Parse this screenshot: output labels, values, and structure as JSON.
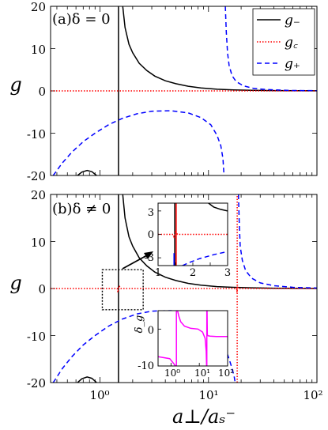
{
  "chart_data": [
    {
      "type": "line",
      "panel_label": "(a)δ = 0",
      "ylabel": "g",
      "xscale": "log",
      "xlim": [
        0.35,
        100
      ],
      "ylim": [
        -20,
        20
      ],
      "yticks": [
        "20",
        "10",
        "0",
        "-10",
        "-20"
      ],
      "legend": {
        "position": "top-right",
        "entries": [
          "g₋",
          "g꜀",
          "g₊"
        ]
      },
      "series": [
        {
          "name": "g₋",
          "color": "#000000",
          "style": "solid",
          "segments": [
            [
              [
                1.48,
                -20
              ],
              [
                1.48,
                20
              ]
            ],
            [
              [
                1.62,
                20
              ],
              [
                1.7,
                15
              ],
              [
                1.85,
                11
              ],
              [
                2.0,
                9
              ],
              [
                2.3,
                6.5
              ],
              [
                2.7,
                4.8
              ],
              [
                3.2,
                3.5
              ],
              [
                4,
                2.4
              ],
              [
                5,
                1.7
              ],
              [
                6.5,
                1.1
              ],
              [
                8.5,
                0.7
              ],
              [
                12,
                0.4
              ],
              [
                17,
                0.25
              ],
              [
                25,
                0.15
              ],
              [
                40,
                0.07
              ],
              [
                70,
                0.03
              ],
              [
                100,
                0.02
              ]
            ],
            [
              [
                0.62,
                -20
              ],
              [
                0.68,
                -19.2
              ],
              [
                0.76,
                -18.8
              ],
              [
                0.84,
                -19.1
              ],
              [
                0.9,
                -19.7
              ],
              [
                0.93,
                -20
              ]
            ]
          ]
        },
        {
          "name": "g꜀",
          "color": "#ff0000",
          "style": "dotted",
          "segments": [
            [
              [
                0.35,
                0
              ],
              [
                100,
                0
              ]
            ]
          ]
        },
        {
          "name": "g₊",
          "color": "#0000ff",
          "style": "dashed",
          "segments": [
            [
              [
                0.37,
                -20
              ],
              [
                0.45,
                -17
              ],
              [
                0.55,
                -14.5
              ],
              [
                0.7,
                -12
              ],
              [
                0.9,
                -10
              ],
              [
                1.2,
                -8
              ],
              [
                1.6,
                -6.5
              ],
              [
                2.2,
                -5.4
              ],
              [
                3,
                -4.8
              ],
              [
                4.5,
                -4.7
              ],
              [
                6.5,
                -5.2
              ],
              [
                8.5,
                -6.3
              ],
              [
                10.5,
                -8
              ],
              [
                12,
                -10.5
              ],
              [
                13,
                -13
              ],
              [
                13.6,
                -16
              ],
              [
                13.9,
                -20
              ]
            ],
            [
              [
                14.3,
                20
              ],
              [
                14.6,
                14
              ],
              [
                15,
                9
              ],
              [
                15.5,
                6
              ],
              [
                16.5,
                3.6
              ],
              [
                18,
                2.2
              ],
              [
                21,
                1.2
              ],
              [
                26,
                0.6
              ],
              [
                35,
                0.3
              ],
              [
                60,
                0.1
              ],
              [
                100,
                0.05
              ]
            ]
          ]
        }
      ]
    },
    {
      "type": "line",
      "panel_label": "(b)δ ≠ 0",
      "ylabel": "g",
      "xlabel": "a⊥/aₛ⁻",
      "xscale": "log",
      "xlim": [
        0.35,
        100
      ],
      "ylim": [
        -20,
        20
      ],
      "yticks": [
        "20",
        "10",
        "0",
        "-10",
        "-20"
      ],
      "xticks": [
        "10⁰",
        "10¹",
        "10²"
      ],
      "series": [
        {
          "name": "g₋",
          "color": "#000000",
          "style": "solid",
          "segments": [
            [
              [
                1.48,
                -20
              ],
              [
                1.48,
                20
              ]
            ],
            [
              [
                1.62,
                20
              ],
              [
                1.7,
                15
              ],
              [
                1.85,
                11
              ],
              [
                2.0,
                9
              ],
              [
                2.3,
                6.5
              ],
              [
                2.7,
                4.8
              ],
              [
                3.2,
                3.5
              ],
              [
                4,
                2.4
              ],
              [
                5,
                1.7
              ],
              [
                6.5,
                1.1
              ],
              [
                8.5,
                0.7
              ],
              [
                12,
                0.4
              ],
              [
                17,
                0.25
              ],
              [
                25,
                0.15
              ],
              [
                40,
                0.07
              ],
              [
                70,
                0.03
              ],
              [
                100,
                0.02
              ]
            ],
            [
              [
                0.62,
                -20
              ],
              [
                0.68,
                -19.2
              ],
              [
                0.76,
                -18.8
              ],
              [
                0.84,
                -19.1
              ],
              [
                0.9,
                -19.7
              ],
              [
                0.93,
                -20
              ]
            ]
          ]
        },
        {
          "name": "g꜀",
          "color": "#ff0000",
          "style": "dotted",
          "segments": [
            [
              [
                0.35,
                0
              ],
              [
                1.44,
                0
              ],
              [
                1.46,
                -0.8
              ],
              [
                1.5,
                0.6
              ],
              [
                1.56,
                0
              ],
              [
                18.2,
                0
              ],
              [
                18.3,
                -0.8
              ],
              [
                18.5,
                0.8
              ],
              [
                18.7,
                0
              ],
              [
                100,
                0
              ]
            ],
            [
              [
                18.4,
                -20
              ],
              [
                18.4,
                20
              ]
            ]
          ]
        },
        {
          "name": "g₊",
          "color": "#0000ff",
          "style": "dashed",
          "segments": [
            [
              [
                0.37,
                -20
              ],
              [
                0.45,
                -17
              ],
              [
                0.55,
                -14.5
              ],
              [
                0.7,
                -12
              ],
              [
                0.9,
                -10
              ],
              [
                1.2,
                -8
              ],
              [
                1.6,
                -6.5
              ],
              [
                2.2,
                -5.4
              ],
              [
                3,
                -4.8
              ],
              [
                4.5,
                -4.7
              ],
              [
                6.5,
                -5.2
              ],
              [
                8.5,
                -6.3
              ],
              [
                10.5,
                -8
              ],
              [
                12.5,
                -10.5
              ],
              [
                14.5,
                -13
              ],
              [
                16,
                -16
              ],
              [
                17.2,
                -18.5
              ],
              [
                17.6,
                -20
              ]
            ],
            [
              [
                18.9,
                20
              ],
              [
                19.2,
                14
              ],
              [
                19.6,
                9
              ],
              [
                20.5,
                6
              ],
              [
                22,
                3.8
              ],
              [
                25,
                2.2
              ],
              [
                30,
                1.2
              ],
              [
                40,
                0.6
              ],
              [
                60,
                0.25
              ],
              [
                100,
                0.1
              ]
            ]
          ]
        }
      ],
      "zoom_box": {
        "x": [
          1.05,
          2.5
        ],
        "y": [
          -4.5,
          4
        ]
      },
      "insets": [
        {
          "name": "zoom-inset",
          "xlim": [
            1,
            3
          ],
          "ylim": [
            -4,
            4
          ],
          "xticks": [
            "1",
            "2",
            "3"
          ],
          "yticks": [
            "3",
            "0",
            "-3"
          ],
          "series": [
            {
              "color": "#000000",
              "style": "solid",
              "segments": [
                [
                  [
                    1.48,
                    -4
                  ],
                  [
                    1.48,
                    4
                  ]
                ],
                [
                  [
                    2.45,
                    4
                  ],
                  [
                    2.6,
                    3.5
                  ],
                  [
                    2.8,
                    3.2
                  ],
                  [
                    3,
                    3
                  ]
                ]
              ]
            },
            {
              "color": "#ff0000",
              "style": "dotted",
              "segments": [
                [
                  [
                    1,
                    0
                  ],
                  [
                    1.44,
                    0
                  ],
                  [
                    1.46,
                    -0.5
                  ],
                  [
                    1.5,
                    0.3
                  ],
                  [
                    1.56,
                    0
                  ],
                  [
                    3,
                    0
                  ]
                ]
              ]
            },
            {
              "color": "#ff0000",
              "style": "solid",
              "segments": [
                [
                  [
                    1.52,
                    -4
                  ],
                  [
                    1.52,
                    4
                  ]
                ]
              ]
            },
            {
              "color": "#0000ff",
              "style": "solid",
              "segments": [
                [
                  [
                    1.46,
                    -4
                  ],
                  [
                    1.46,
                    -2.4
                  ]
                ]
              ]
            },
            {
              "color": "#0000ff",
              "style": "dashed",
              "segments": [
                [
                  [
                    1.7,
                    -4
                  ],
                  [
                    1.9,
                    -3.6
                  ],
                  [
                    2.2,
                    -3.1
                  ],
                  [
                    2.6,
                    -2.6
                  ],
                  [
                    3,
                    -2.2
                  ]
                ]
              ]
            }
          ]
        },
        {
          "name": "delta-inset",
          "ylabel": "δ_g",
          "xscale": "log",
          "xlim": [
            0.35,
            100
          ],
          "ylim": [
            -10,
            5
          ],
          "xticks": [
            "10⁰",
            "10¹",
            "10²"
          ],
          "yticks": [
            "0",
            "-10"
          ],
          "series": [
            {
              "color": "#ff00ff",
              "style": "solid",
              "segments": [
                [
                  [
                    0.35,
                    -7.5
                  ],
                  [
                    0.9,
                    -8
                  ],
                  [
                    1.3,
                    -9.5
                  ],
                  [
                    1.42,
                    -10
                  ]
                ],
                [
                  [
                    1.55,
                    -10
                  ],
                  [
                    1.55,
                    5
                  ]
                ],
                [
                  [
                    1.7,
                    5
                  ],
                  [
                    1.9,
                    3.5
                  ],
                  [
                    2.2,
                    2
                  ],
                  [
                    3,
                    0.8
                  ],
                  [
                    5,
                    0.2
                  ],
                  [
                    9,
                    0
                  ],
                  [
                    13,
                    -0.8
                  ],
                  [
                    16,
                    -2.5
                  ],
                  [
                    17.5,
                    -6
                  ],
                  [
                    18.1,
                    -10
                  ]
                ],
                [
                  [
                    18.4,
                    -10
                  ],
                  [
                    18.4,
                    5
                  ]
                ],
                [
                  [
                    18.8,
                    5
                  ],
                  [
                    19.2,
                    -1.5
                  ],
                  [
                    20,
                    -1.8
                  ],
                  [
                    24,
                    -1.9
                  ],
                  [
                    40,
                    -2
                  ],
                  [
                    100,
                    -2
                  ]
                ]
              ]
            }
          ]
        }
      ]
    }
  ]
}
